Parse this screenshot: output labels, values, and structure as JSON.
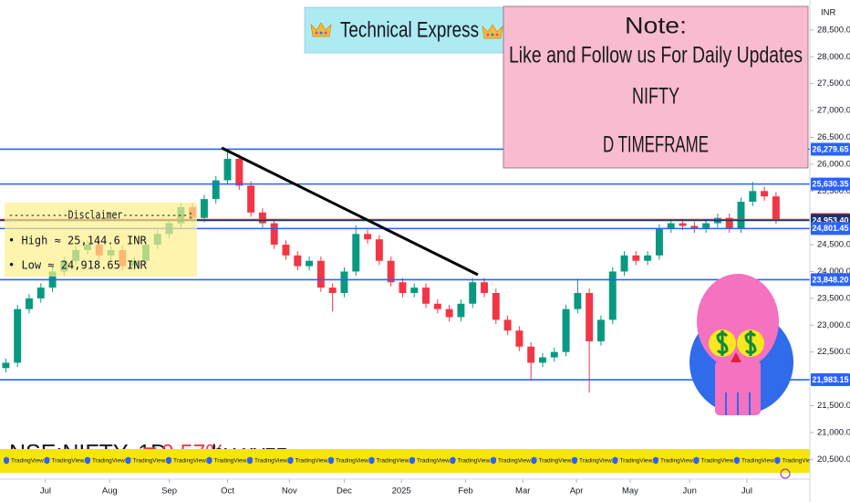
{
  "banner": {
    "title": "Technical Express"
  },
  "note": {
    "lines": [
      "Note:",
      "Like and Follow us For Daily Updates",
      "NIFTY",
      "D TIMEFRAME"
    ]
  },
  "disclaimer": {
    "title": "-----------Disclaimer------------:",
    "lines": [
      "• High ≈ 25,144.6 INR",
      "• Low ≈ 24,918.65 INR"
    ]
  },
  "watermark": {
    "symbol": "NSE:NIFTY, 1D",
    "change": "▼0.57%",
    "author": "by xyzz"
  },
  "ticker": {
    "item": "TradingView.i"
  },
  "chart_data": {
    "type": "candlestick",
    "currency": "INR",
    "up_color": "#089981",
    "down_color": "#f23645",
    "open": [
      22200,
      22300,
      23300,
      23500,
      23700,
      24000,
      24200,
      24400,
      24500,
      24300,
      24400,
      24100,
      24200,
      24500,
      24700,
      24900,
      25200,
      25000,
      25350,
      25700,
      26100,
      25600,
      25100,
      24900,
      24500,
      24300,
      24100,
      24200,
      23700,
      23600,
      24000,
      24700,
      24600,
      24200,
      23800,
      23600,
      23700,
      23400,
      23300,
      23150,
      23400,
      23800,
      23600,
      23100,
      22900,
      22600,
      22300,
      22400,
      22500,
      23300,
      23600,
      22700,
      23100,
      24000,
      24300,
      24200,
      24300,
      24800,
      24900,
      24850,
      24800,
      24900,
      25000,
      24800,
      25300,
      25500,
      25400
    ],
    "high": [
      22380,
      23380,
      23580,
      23780,
      24080,
      24280,
      24480,
      24580,
      24580,
      24480,
      24480,
      24280,
      24580,
      24780,
      24980,
      25280,
      25280,
      25430,
      25780,
      26277.35,
      26180,
      25680,
      25180,
      24980,
      24580,
      24380,
      24280,
      24280,
      23780,
      24080,
      24860,
      24780,
      24680,
      24280,
      23880,
      23780,
      23780,
      23480,
      23380,
      23480,
      23880,
      23880,
      23680,
      23180,
      22980,
      22680,
      22480,
      22580,
      23380,
      23870,
      23680,
      23180,
      24080,
      24380,
      24380,
      24380,
      24880,
      24980,
      24980,
      24930,
      24980,
      25080,
      25080,
      25380,
      25669,
      25580,
      25480
    ],
    "low": [
      22120,
      22220,
      23220,
      23420,
      23620,
      23920,
      24120,
      24320,
      24220,
      24220,
      24020,
      24020,
      24120,
      24420,
      24620,
      24820,
      24920,
      24920,
      25270,
      25620,
      25520,
      25020,
      24820,
      24420,
      24220,
      24020,
      24020,
      23620,
      23260,
      23520,
      23920,
      24520,
      24120,
      23720,
      23520,
      23520,
      23320,
      23220,
      23070,
      23070,
      23320,
      23520,
      23020,
      22820,
      22520,
      21964,
      22220,
      22320,
      22420,
      23220,
      21743,
      22620,
      23020,
      23920,
      24120,
      24120,
      24220,
      24720,
      24770,
      24720,
      24720,
      24820,
      24720,
      24720,
      25220,
      25320,
      24888
    ],
    "close": [
      22300,
      23300,
      23500,
      23700,
      24000,
      24200,
      24400,
      24500,
      24300,
      24400,
      24100,
      24200,
      24500,
      24700,
      24900,
      25200,
      25000,
      25350,
      25700,
      26100,
      25600,
      25100,
      24900,
      24500,
      24300,
      24100,
      24200,
      23700,
      23600,
      24000,
      24700,
      24600,
      24200,
      23800,
      23600,
      23700,
      23400,
      23300,
      23150,
      23400,
      23800,
      23600,
      23100,
      22900,
      22600,
      22300,
      22400,
      22500,
      23300,
      23600,
      22700,
      23100,
      24000,
      24300,
      24200,
      24300,
      24800,
      24900,
      24850,
      24800,
      24900,
      25000,
      24800,
      25300,
      25500,
      25400,
      24968.4
    ],
    "xlim": [
      -0.5,
      68.9
    ],
    "xticks": [
      {
        "value": 3.4,
        "label": "Jul"
      },
      {
        "value": 8.9,
        "label": "Aug"
      },
      {
        "value": 14.0,
        "label": "Sep"
      },
      {
        "value": 19.0,
        "label": "Oct"
      },
      {
        "value": 24.3,
        "label": "Nov"
      },
      {
        "value": 29.0,
        "label": "Dec"
      },
      {
        "value": 33.9,
        "label": "2025"
      },
      {
        "value": 39.4,
        "label": "Feb"
      },
      {
        "value": 44.3,
        "label": "Mar"
      },
      {
        "value": 48.9,
        "label": "Apr"
      },
      {
        "value": 53.5,
        "label": "May"
      },
      {
        "value": 58.6,
        "label": "Jun"
      },
      {
        "value": 63.5,
        "label": "Jul"
      }
    ],
    "ylim": [
      20130,
      29060
    ],
    "yticks": [
      {
        "value": 20500,
        "label": "20,500.00"
      },
      {
        "value": 21000,
        "label": "21,000.00"
      },
      {
        "value": 21500,
        "label": "21,500.00"
      },
      {
        "value": 22000,
        "label": "22,000.00"
      },
      {
        "value": 22500,
        "label": "22,500.00"
      },
      {
        "value": 23000,
        "label": "23,000.00"
      },
      {
        "value": 23500,
        "label": "23,500.00"
      },
      {
        "value": 24000,
        "label": "24,000.00"
      },
      {
        "value": 24500,
        "label": "24,500.00"
      },
      {
        "value": 25000,
        "label": "25,000.00"
      },
      {
        "value": 25500,
        "label": "25,500.00"
      },
      {
        "value": 26000,
        "label": "26,000.00"
      },
      {
        "value": 26500,
        "label": "26,500.00"
      },
      {
        "value": 27000,
        "label": "27,000.00"
      },
      {
        "value": 27500,
        "label": "27,500.00"
      },
      {
        "value": 28000,
        "label": "28,000.00"
      },
      {
        "value": 28500,
        "label": "28,500.00"
      }
    ],
    "levels": [
      {
        "value": 26279.65,
        "label": "26,279.65",
        "color": "#2962ff"
      },
      {
        "value": 25630.35,
        "label": "25,630.35",
        "color": "#2962ff"
      },
      {
        "value": 24968.4,
        "label": "24,968.40",
        "color": "#f23645"
      },
      {
        "value": 24953.4,
        "label": "24,953.40",
        "color": "#1c2f6e"
      },
      {
        "value": 24801.45,
        "label": "24,801.45",
        "color": "#2962ff"
      },
      {
        "value": 23848.2,
        "label": "23,848.20",
        "color": "#2962ff"
      },
      {
        "value": 21983.15,
        "label": "21,983.15",
        "color": "#2962ff"
      }
    ]
  }
}
